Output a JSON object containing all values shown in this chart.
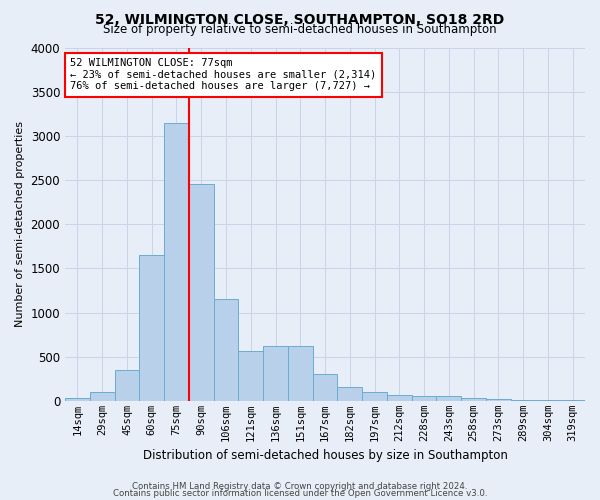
{
  "title": "52, WILMINGTON CLOSE, SOUTHAMPTON, SO18 2RD",
  "subtitle": "Size of property relative to semi-detached houses in Southampton",
  "xlabel": "Distribution of semi-detached houses by size in Southampton",
  "ylabel": "Number of semi-detached properties",
  "footnote1": "Contains HM Land Registry data © Crown copyright and database right 2024.",
  "footnote2": "Contains public sector information licensed under the Open Government Licence v3.0.",
  "categories": [
    "14sqm",
    "29sqm",
    "45sqm",
    "60sqm",
    "75sqm",
    "90sqm",
    "106sqm",
    "121sqm",
    "136sqm",
    "151sqm",
    "167sqm",
    "182sqm",
    "197sqm",
    "212sqm",
    "228sqm",
    "243sqm",
    "258sqm",
    "273sqm",
    "289sqm",
    "304sqm",
    "319sqm"
  ],
  "values": [
    30,
    100,
    350,
    1650,
    3150,
    2450,
    1150,
    570,
    620,
    620,
    310,
    160,
    100,
    70,
    60,
    50,
    35,
    20,
    10,
    5,
    5
  ],
  "bar_color": "#b8d0ea",
  "bar_edge_color": "#6aacd4",
  "property_bin_index": 4,
  "property_label": "52 WILMINGTON CLOSE: 77sqm",
  "pct_smaller": 23,
  "n_smaller": 2314,
  "pct_larger": 76,
  "n_larger": 7727,
  "vline_color": "red",
  "grid_color": "#c8d4e8",
  "background_color": "#e8eef8",
  "ylim": [
    0,
    4000
  ],
  "yticks": [
    0,
    500,
    1000,
    1500,
    2000,
    2500,
    3000,
    3500,
    4000
  ]
}
